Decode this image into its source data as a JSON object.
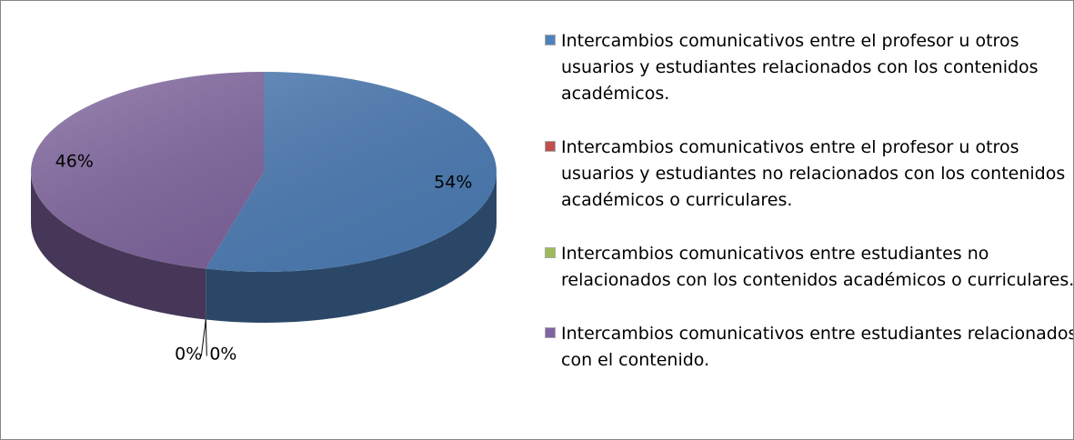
{
  "chart_data": {
    "type": "pie",
    "categories": [
      "Intercambios comunicativos entre el profesor u otros usuarios  y estudiantes relacionados con los contenidos académicos.",
      "Intercambios comunicativos  entre el profesor u otros usuarios y estudiantes no relacionados con los contenidos académicos o curriculares.",
      "Intercambios comunicativos entre estudiantes no relacionados con los contenidos académicos o curriculares.",
      "Intercambios comunicativos entre estudiantes relacionados con el contenido."
    ],
    "values": [
      54,
      0,
      0,
      46
    ],
    "value_labels": [
      "54%",
      "0%",
      "0%",
      "46%"
    ],
    "colors": [
      "#4f81bd",
      "#c0504d",
      "#9bbb59",
      "#8064a2"
    ],
    "legend": "right"
  }
}
